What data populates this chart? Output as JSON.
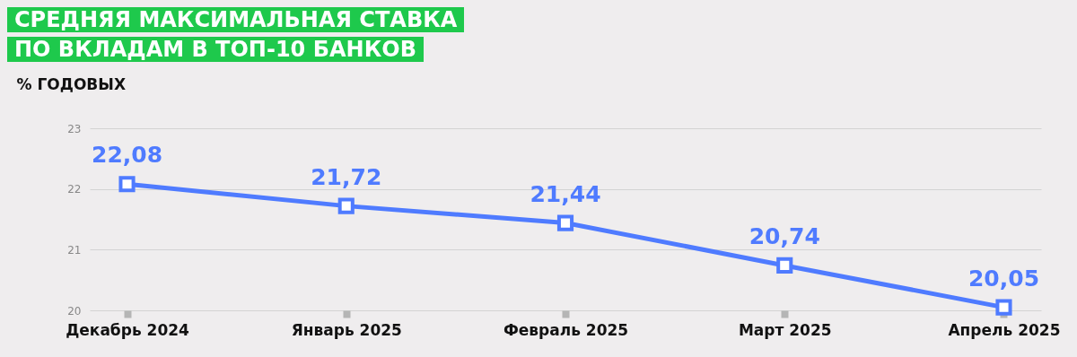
{
  "chart_data": {
    "type": "line",
    "title": "СРЕДНЯЯ МАКСИМАЛЬНАЯ СТАВКА ПО ВКЛАДАМ В ТОП-10 БАНКОВ",
    "ylabel": "% ГОДОВЫХ",
    "categories": [
      "Декабрь 2024",
      "Январь 2025",
      "Февраль 2025",
      "Март 2025",
      "Апрель 2025"
    ],
    "series": [
      {
        "color": "#4f7bff",
        "values": [
          22.08,
          21.72,
          21.44,
          20.74,
          20.05
        ],
        "value_labels": [
          "22,08",
          "21,72",
          "21,44",
          "20,74",
          "20,05"
        ]
      }
    ],
    "ylim": [
      20,
      23
    ],
    "yticks": [
      20,
      21,
      22,
      23
    ],
    "grid": "y",
    "marker": "square",
    "line_style": "solid"
  }
}
